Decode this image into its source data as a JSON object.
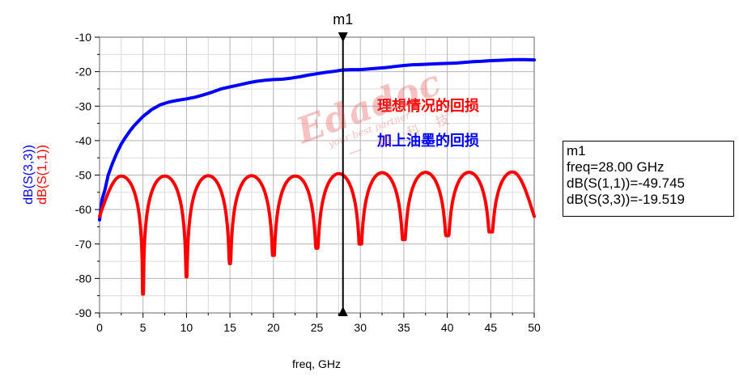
{
  "chart_data": {
    "type": "line",
    "xlabel": "freq, GHz",
    "ylabel_series": [
      "dB(S(3,3))",
      "dB(S(1,1))"
    ],
    "xlim": [
      0,
      50
    ],
    "ylim": [
      -90,
      -10
    ],
    "x_ticks": [
      0,
      5,
      10,
      15,
      20,
      25,
      30,
      35,
      40,
      45,
      50
    ],
    "y_ticks": [
      -10,
      -20,
      -30,
      -40,
      -50,
      -60,
      -70,
      -80,
      -90
    ],
    "grid": true,
    "series": [
      {
        "name": "dB(S(3,3))",
        "color": "#0000ff",
        "x": [
          0,
          0.3,
          0.6,
          1,
          1.5,
          2,
          2.5,
          3,
          3.5,
          4,
          5,
          6,
          7,
          8,
          9,
          10,
          11,
          12,
          13,
          14,
          15,
          16,
          17,
          18,
          19,
          20,
          21,
          22,
          23,
          24,
          25,
          26,
          27,
          28,
          29,
          30,
          31,
          32,
          33,
          34,
          35,
          36,
          37,
          38,
          39,
          40,
          41,
          42,
          43,
          44,
          45,
          46,
          47,
          48,
          49,
          50
        ],
        "values": [
          -63,
          -57,
          -54.5,
          -50,
          -46.5,
          -43.5,
          -41,
          -39,
          -37.2,
          -35.6,
          -33,
          -31,
          -29.6,
          -28.8,
          -28.3,
          -27.9,
          -27.4,
          -26.7,
          -25.9,
          -25.0,
          -24.4,
          -23.9,
          -23.3,
          -22.8,
          -22.5,
          -22.3,
          -22.2,
          -21.9,
          -21.5,
          -21.0,
          -20.6,
          -20.2,
          -19.9,
          -19.5,
          -19.4,
          -19.4,
          -19.2,
          -19.0,
          -18.8,
          -18.5,
          -18.2,
          -18.0,
          -17.9,
          -17.8,
          -17.7,
          -17.6,
          -17.5,
          -17.3,
          -17.1,
          -17.0,
          -16.8,
          -16.7,
          -16.6,
          -16.5,
          -16.5,
          -16.6
        ]
      },
      {
        "name": "dB(S(1,1))",
        "color": "#ff0000",
        "peaks_x": [
          0,
          2.5,
          7.5,
          12.5,
          17.5,
          22.5,
          27.5,
          32.5,
          37.5,
          42.5,
          47.5,
          50
        ],
        "peaks_y": [
          -62,
          -50.3,
          -50.3,
          -50.2,
          -50.2,
          -50.3,
          -49.6,
          -49.3,
          -49.2,
          -49.2,
          -49.1,
          -62
        ],
        "nulls_x": [
          5,
          10,
          15,
          20,
          25,
          30,
          35,
          40,
          45
        ],
        "nulls_y": [
          -84.5,
          -79.5,
          -75.7,
          -73.3,
          -71.2,
          -70,
          -68.7,
          -67.6,
          -66.5
        ]
      }
    ],
    "annotations": [
      {
        "text": "理想情况的回损",
        "color": "#ff0000"
      },
      {
        "text": "加上油墨的回损",
        "color": "#0000ff"
      }
    ],
    "marker": {
      "label": "m1",
      "x": 28,
      "lines": [
        "m1",
        "freq=28.00 GHz",
        "dB(S(1,1))=-49.745",
        "dB(S(3,3))=-19.519"
      ]
    }
  },
  "watermark": {
    "brand": "Edadoc",
    "tagline": "your best partner",
    "chinese": "一博科技"
  }
}
